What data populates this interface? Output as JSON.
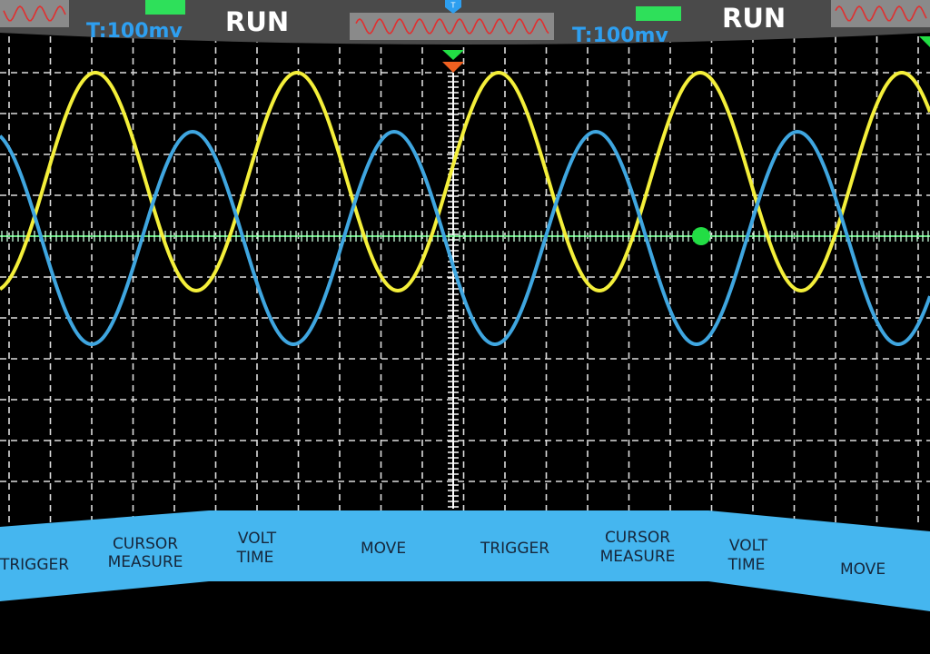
{
  "header": {
    "panels": [
      {
        "trigger_level": "T:100mv",
        "status": "RUN"
      },
      {
        "trigger_level": "T:100mv",
        "status": "RUN"
      }
    ],
    "trigger_marker": "T"
  },
  "buttons": [
    {
      "lines": [
        "TRIGGER"
      ]
    },
    {
      "lines": [
        "CURSOR",
        "MEASURE"
      ]
    },
    {
      "lines": [
        "VOLT",
        "TIME"
      ]
    },
    {
      "lines": [
        "MOVE"
      ]
    },
    {
      "lines": [
        "TRIGGER"
      ]
    },
    {
      "lines": [
        "CURSOR",
        "MEASURE"
      ]
    },
    {
      "lines": [
        "VOLT",
        "TIME"
      ]
    },
    {
      "lines": [
        "MOVE"
      ]
    }
  ]
}
